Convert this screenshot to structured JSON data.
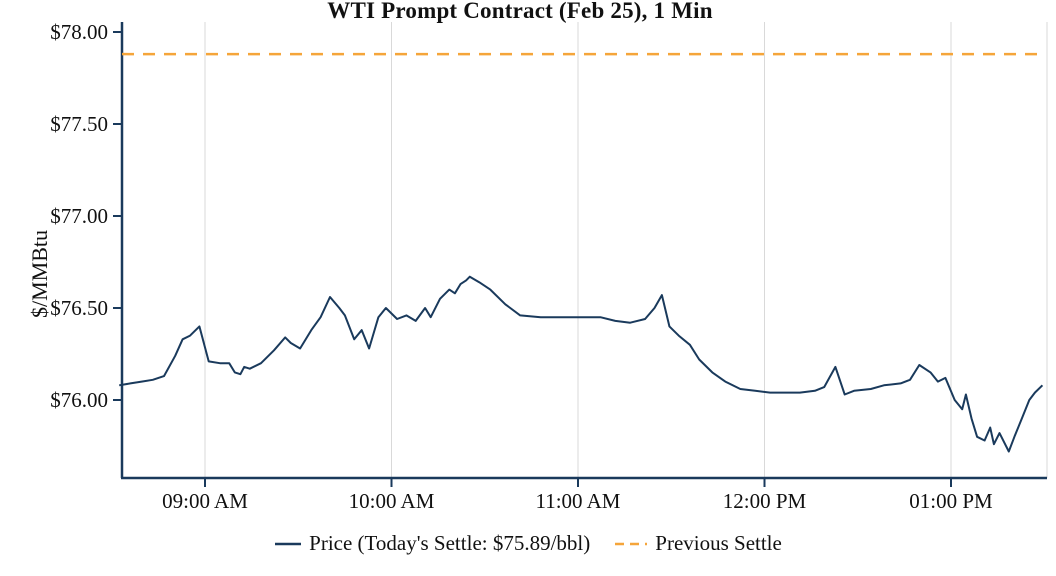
{
  "colors": {
    "price_line": "#1a3a5c",
    "previous_settle": "#f5a53a",
    "axis": "#1a3a5c",
    "grid": "#d9d9d9",
    "text": "#111111"
  },
  "legend": {
    "price_label": "Price (Today's Settle: $75.89/bbl)",
    "previous_settle_label": "Previous Settle"
  },
  "chart_data": {
    "type": "line",
    "title": "WTI Prompt Contract (Feb 25), 1 Min",
    "xlabel": "",
    "ylabel": "$/MMBtu",
    "x_ticks": [
      "09:00 AM",
      "10:00 AM",
      "11:00 AM",
      "12:00 PM",
      "01:00 PM"
    ],
    "x_tick_values": [
      9,
      10,
      11,
      12,
      13
    ],
    "y_ticks": [
      "$78.00",
      "$77.50",
      "$77.00",
      "$76.50",
      "$76.00"
    ],
    "y_tick_values": [
      78.0,
      77.5,
      77.0,
      76.5,
      76.0
    ],
    "ylim": [
      75.55,
      78.05
    ],
    "xlim_hours": [
      8.5,
      13.55
    ],
    "grid": "vertical",
    "legend_position": "bottom",
    "previous_settle": 77.88,
    "todays_settle": 75.89,
    "series": [
      {
        "name": "Price",
        "x": [
          8.54,
          8.6,
          8.66,
          8.72,
          8.78,
          8.84,
          8.88,
          8.92,
          8.97,
          9.02,
          9.08,
          9.13,
          9.16,
          9.19,
          9.21,
          9.24,
          9.3,
          9.37,
          9.43,
          9.46,
          9.51,
          9.57,
          9.62,
          9.67,
          9.72,
          9.75,
          9.8,
          9.84,
          9.88,
          9.93,
          9.97,
          10.03,
          10.08,
          10.13,
          10.18,
          10.21,
          10.26,
          10.31,
          10.34,
          10.37,
          10.4,
          10.42,
          10.47,
          10.53,
          10.61,
          10.69,
          10.8,
          10.9,
          11.0,
          11.12,
          11.2,
          11.28,
          11.36,
          11.41,
          11.45,
          11.49,
          11.54,
          11.6,
          11.65,
          11.72,
          11.79,
          11.87,
          11.95,
          12.03,
          12.11,
          12.19,
          12.27,
          12.32,
          12.38,
          12.43,
          12.48,
          12.57,
          12.64,
          12.73,
          12.78,
          12.83,
          12.89,
          12.93,
          12.97,
          13.02,
          13.06,
          13.08,
          13.11,
          13.14,
          13.18,
          13.21,
          13.23,
          13.26,
          13.31,
          13.34,
          13.38,
          13.42,
          13.45,
          13.49
        ],
        "y": [
          76.08,
          76.09,
          76.1,
          76.11,
          76.13,
          76.24,
          76.33,
          76.35,
          76.4,
          76.21,
          76.2,
          76.2,
          76.15,
          76.14,
          76.18,
          76.17,
          76.2,
          76.27,
          76.34,
          76.31,
          76.28,
          76.38,
          76.45,
          76.56,
          76.5,
          76.46,
          76.33,
          76.38,
          76.28,
          76.45,
          76.5,
          76.44,
          76.46,
          76.43,
          76.5,
          76.45,
          76.55,
          76.6,
          76.58,
          76.63,
          76.65,
          76.67,
          76.64,
          76.6,
          76.52,
          76.46,
          76.45,
          76.45,
          76.45,
          76.45,
          76.43,
          76.42,
          76.44,
          76.5,
          76.57,
          76.4,
          76.35,
          76.3,
          76.22,
          76.15,
          76.1,
          76.06,
          76.05,
          76.04,
          76.04,
          76.04,
          76.05,
          76.07,
          76.18,
          76.03,
          76.05,
          76.06,
          76.08,
          76.09,
          76.11,
          76.19,
          76.15,
          76.1,
          76.12,
          76.0,
          75.95,
          76.03,
          75.9,
          75.8,
          75.78,
          75.85,
          75.76,
          75.82,
          75.72,
          75.8,
          75.9,
          76.0,
          76.04,
          76.08
        ]
      }
    ]
  }
}
